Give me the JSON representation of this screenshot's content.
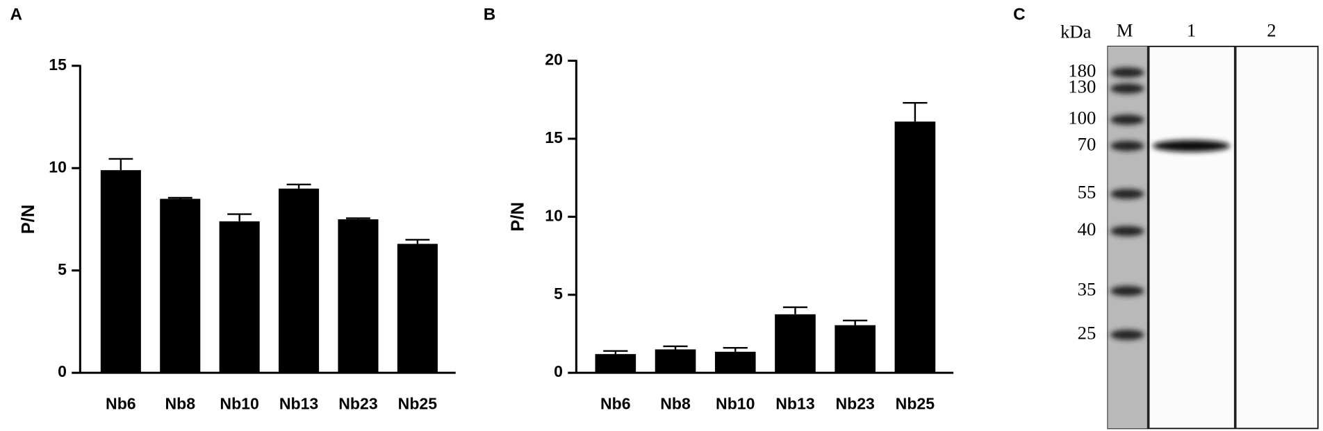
{
  "chart_data": [
    {
      "type": "bar",
      "panel_label": "A",
      "y_label": "P/N",
      "categories": [
        "Nb6",
        "Nb8",
        "Nb10",
        "Nb13",
        "Nb23",
        "Nb25"
      ],
      "values": [
        9.9,
        8.5,
        7.4,
        9.0,
        7.5,
        6.3
      ],
      "errors": [
        0.55,
        0.05,
        0.35,
        0.2,
        0.05,
        0.2
      ],
      "color": "#000000",
      "ylim": [
        0,
        15
      ],
      "yticks": [
        0,
        5,
        10,
        15
      ]
    },
    {
      "type": "bar",
      "panel_label": "B",
      "y_label": "P/N",
      "categories": [
        "Nb6",
        "Nb8",
        "Nb10",
        "Nb13",
        "Nb23",
        "Nb25"
      ],
      "values": [
        1.2,
        1.5,
        1.35,
        3.75,
        3.05,
        16.1
      ],
      "errors": [
        0.2,
        0.2,
        0.25,
        0.45,
        0.3,
        1.2
      ],
      "color": "#000000",
      "ylim": [
        0,
        20
      ],
      "yticks": [
        0,
        5,
        10,
        15,
        20
      ]
    }
  ],
  "blot": {
    "panel_label": "C",
    "unit_label": "kDa",
    "lanes": [
      "M",
      "1",
      "2"
    ],
    "markers": [
      180,
      130,
      100,
      70,
      55,
      40,
      35,
      25
    ]
  }
}
